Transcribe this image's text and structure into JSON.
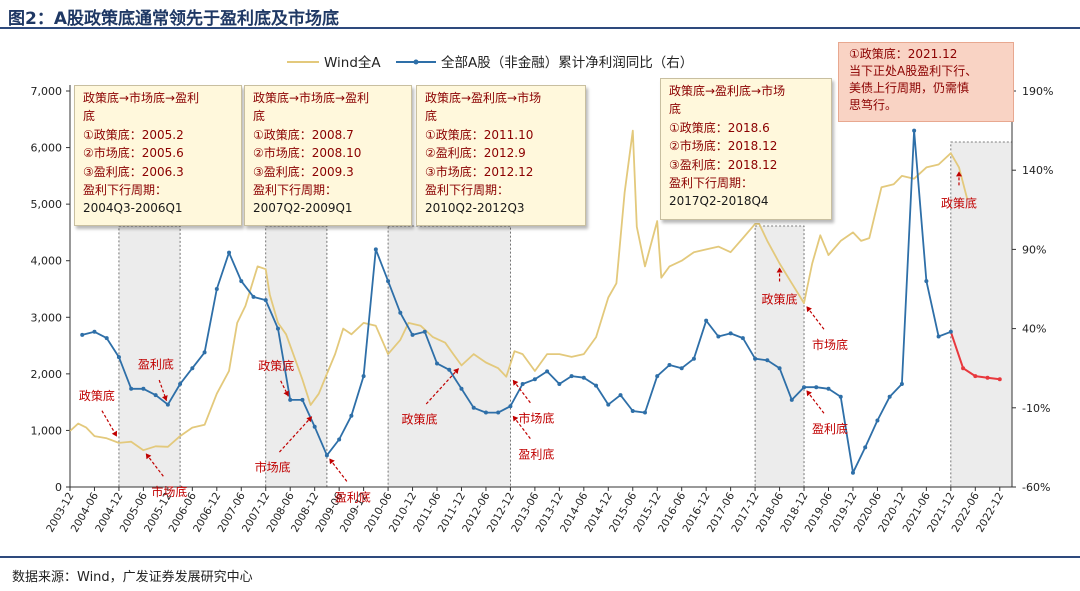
{
  "title": "图2：A股政策底通常领先于盈利底及市场底",
  "source": "数据来源：Wind，广发证券发展研究中心",
  "chart_data": {
    "type": "line",
    "legend": {
      "placement": "top",
      "items": [
        "Wind全A",
        "全部A股（非金融）累计净利润同比（右）"
      ]
    },
    "x_labels": [
      "2003-12",
      "2004-06",
      "2004-12",
      "2005-06",
      "2005-12",
      "2006-06",
      "2006-12",
      "2007-06",
      "2007-12",
      "2008-06",
      "2008-12",
      "2009-06",
      "2009-12",
      "2010-06",
      "2010-12",
      "2011-06",
      "2011-12",
      "2012-06",
      "2012-12",
      "2013-06",
      "2013-12",
      "2014-06",
      "2014-12",
      "2015-06",
      "2015-12",
      "2016-06",
      "2016-12",
      "2017-06",
      "2017-12",
      "2018-06",
      "2018-12",
      "2019-06",
      "2019-12",
      "2020-06",
      "2020-12",
      "2021-06",
      "2021-12",
      "2022-06",
      "2022-12"
    ],
    "y_left": {
      "min": 0,
      "max": 7000,
      "ticks": [
        "0",
        "1,000",
        "2,000",
        "3,000",
        "4,000",
        "5,000",
        "6,000",
        "7,000"
      ]
    },
    "y_right": {
      "min": -60,
      "max": 190,
      "ticks": [
        "-60%",
        "-10%",
        "40%",
        "90%",
        "140%",
        "190%"
      ]
    },
    "series": [
      {
        "name": "Wind全A",
        "axis": "left",
        "color": "#e3c97c",
        "points": [
          [
            "2003-12",
            990
          ],
          [
            "2004-02",
            1120
          ],
          [
            "2004-04",
            1050
          ],
          [
            "2004-06",
            900
          ],
          [
            "2004-09",
            860
          ],
          [
            "2004-12",
            780
          ],
          [
            "2005-03",
            800
          ],
          [
            "2005-06",
            650
          ],
          [
            "2005-09",
            720
          ],
          [
            "2005-12",
            710
          ],
          [
            "2006-03",
            900
          ],
          [
            "2006-06",
            1050
          ],
          [
            "2006-09",
            1100
          ],
          [
            "2006-12",
            1650
          ],
          [
            "2007-03",
            2050
          ],
          [
            "2007-05",
            2900
          ],
          [
            "2007-07",
            3200
          ],
          [
            "2007-10",
            3900
          ],
          [
            "2007-12",
            3850
          ],
          [
            "2008-01",
            3400
          ],
          [
            "2008-03",
            2900
          ],
          [
            "2008-05",
            2700
          ],
          [
            "2008-07",
            2300
          ],
          [
            "2008-09",
            1900
          ],
          [
            "2008-11",
            1450
          ],
          [
            "2009-01",
            1650
          ],
          [
            "2009-03",
            2000
          ],
          [
            "2009-05",
            2350
          ],
          [
            "2009-07",
            2800
          ],
          [
            "2009-09",
            2700
          ],
          [
            "2009-12",
            2900
          ],
          [
            "2010-03",
            2850
          ],
          [
            "2010-06",
            2350
          ],
          [
            "2010-09",
            2600
          ],
          [
            "2010-11",
            2900
          ],
          [
            "2011-02",
            2850
          ],
          [
            "2011-05",
            2650
          ],
          [
            "2011-08",
            2550
          ],
          [
            "2011-10",
            2350
          ],
          [
            "2011-12",
            2150
          ],
          [
            "2012-03",
            2350
          ],
          [
            "2012-06",
            2200
          ],
          [
            "2012-09",
            2100
          ],
          [
            "2012-11",
            1950
          ],
          [
            "2013-01",
            2400
          ],
          [
            "2013-03",
            2350
          ],
          [
            "2013-06",
            2050
          ],
          [
            "2013-09",
            2350
          ],
          [
            "2013-12",
            2350
          ],
          [
            "2014-03",
            2300
          ],
          [
            "2014-06",
            2350
          ],
          [
            "2014-09",
            2650
          ],
          [
            "2014-12",
            3350
          ],
          [
            "2015-02",
            3600
          ],
          [
            "2015-04",
            5200
          ],
          [
            "2015-06",
            6300
          ],
          [
            "2015-07",
            4600
          ],
          [
            "2015-09",
            3900
          ],
          [
            "2015-12",
            4700
          ],
          [
            "2016-01",
            3700
          ],
          [
            "2016-03",
            3900
          ],
          [
            "2016-06",
            4000
          ],
          [
            "2016-09",
            4150
          ],
          [
            "2016-12",
            4200
          ],
          [
            "2017-03",
            4250
          ],
          [
            "2017-06",
            4150
          ],
          [
            "2017-09",
            4400
          ],
          [
            "2017-12",
            4650
          ],
          [
            "2018-01",
            4650
          ],
          [
            "2018-03",
            4350
          ],
          [
            "2018-06",
            3950
          ],
          [
            "2018-09",
            3600
          ],
          [
            "2018-12",
            3250
          ],
          [
            "2019-02",
            3950
          ],
          [
            "2019-04",
            4450
          ],
          [
            "2019-06",
            4100
          ],
          [
            "2019-09",
            4350
          ],
          [
            "2019-12",
            4500
          ],
          [
            "2020-02",
            4350
          ],
          [
            "2020-04",
            4400
          ],
          [
            "2020-07",
            5300
          ],
          [
            "2020-10",
            5350
          ],
          [
            "2020-12",
            5500
          ],
          [
            "2021-03",
            5450
          ],
          [
            "2021-06",
            5650
          ],
          [
            "2021-09",
            5700
          ],
          [
            "2021-12",
            5900
          ],
          [
            "2022-02",
            5650
          ],
          [
            "2022-04",
            5100
          ]
        ]
      },
      {
        "name": "全部A股（非金融）累计净利润同比（右）",
        "axis": "right",
        "color": "#2e6fa8",
        "highlight_color": "#e8383d",
        "points": [
          [
            "2004-03",
            36
          ],
          [
            "2004-06",
            38
          ],
          [
            "2004-09",
            34
          ],
          [
            "2004-12",
            22
          ],
          [
            "2005-03",
            2
          ],
          [
            "2005-06",
            2
          ],
          [
            "2005-09",
            -2
          ],
          [
            "2005-12",
            -8
          ],
          [
            "2006-03",
            5
          ],
          [
            "2006-06",
            15
          ],
          [
            "2006-09",
            25
          ],
          [
            "2006-12",
            65
          ],
          [
            "2007-03",
            88
          ],
          [
            "2007-06",
            70
          ],
          [
            "2007-09",
            60
          ],
          [
            "2007-12",
            58
          ],
          [
            "2008-03",
            40
          ],
          [
            "2008-06",
            -5
          ],
          [
            "2008-09",
            -5
          ],
          [
            "2008-12",
            -22
          ],
          [
            "2009-03",
            -40
          ],
          [
            "2009-06",
            -30
          ],
          [
            "2009-09",
            -15
          ],
          [
            "2009-12",
            10
          ],
          [
            "2010-03",
            90
          ],
          [
            "2010-06",
            70
          ],
          [
            "2010-09",
            50
          ],
          [
            "2010-12",
            36
          ],
          [
            "2011-03",
            38
          ],
          [
            "2011-06",
            18
          ],
          [
            "2011-09",
            14
          ],
          [
            "2011-12",
            2
          ],
          [
            "2012-03",
            -10
          ],
          [
            "2012-06",
            -13
          ],
          [
            "2012-09",
            -13
          ],
          [
            "2012-12",
            -9
          ],
          [
            "2013-03",
            5
          ],
          [
            "2013-06",
            8
          ],
          [
            "2013-09",
            13
          ],
          [
            "2013-12",
            5
          ],
          [
            "2014-03",
            10
          ],
          [
            "2014-06",
            9
          ],
          [
            "2014-09",
            4
          ],
          [
            "2014-12",
            -8
          ],
          [
            "2015-03",
            -2
          ],
          [
            "2015-06",
            -12
          ],
          [
            "2015-09",
            -13
          ],
          [
            "2015-12",
            10
          ],
          [
            "2016-03",
            17
          ],
          [
            "2016-06",
            15
          ],
          [
            "2016-09",
            21
          ],
          [
            "2016-12",
            45
          ],
          [
            "2017-03",
            35
          ],
          [
            "2017-06",
            37
          ],
          [
            "2017-09",
            34
          ],
          [
            "2017-12",
            21
          ],
          [
            "2018-03",
            20
          ],
          [
            "2018-06",
            15
          ],
          [
            "2018-09",
            -5
          ],
          [
            "2018-12",
            3
          ],
          [
            "2019-03",
            3
          ],
          [
            "2019-06",
            2
          ],
          [
            "2019-09",
            -3
          ],
          [
            "2019-12",
            -51
          ],
          [
            "2020-03",
            -35
          ],
          [
            "2020-06",
            -18
          ],
          [
            "2020-09",
            -3
          ],
          [
            "2020-12",
            5
          ],
          [
            "2021-03",
            165
          ],
          [
            "2021-06",
            70
          ],
          [
            "2021-09",
            35
          ],
          [
            "2021-12",
            38
          ],
          [
            "2022-03",
            15
          ],
          [
            "2022-06",
            10
          ],
          [
            "2022-09",
            9
          ],
          [
            "2022-12",
            8
          ]
        ],
        "highlight_from": "2021-12"
      }
    ],
    "shaded_periods": [
      [
        "2004-12",
        "2006-03"
      ],
      [
        "2007-12",
        "2009-03"
      ],
      [
        "2010-06",
        "2012-12"
      ],
      [
        "2017-12",
        "2018-12"
      ],
      [
        "2021-12",
        "2023-03"
      ]
    ],
    "annotations": [
      {
        "text": "政策底",
        "at": [
          "2004-12",
          830
        ],
        "arrow": "down-right"
      },
      {
        "text": "市场底",
        "at": [
          "2005-06",
          650
        ],
        "arrow": "up-left"
      },
      {
        "text": "盈利底",
        "at": [
          "2005-12",
          -8
        ],
        "arrow": "down-left"
      },
      {
        "text": "政策底",
        "at": [
          "2008-06",
          -5
        ],
        "arrow": "down"
      },
      {
        "text": "市场底",
        "at": [
          "2008-12",
          1300
        ],
        "arrow": "up-right"
      },
      {
        "text": "盈利底",
        "at": [
          "2009-03",
          -40
        ],
        "arrow": "up-left"
      },
      {
        "text": "政策底",
        "at": [
          "2011-12",
          2150
        ],
        "arrow": "up-right"
      },
      {
        "text": "市场底",
        "at": [
          "2012-12",
          1950
        ],
        "arrow": "up-left"
      },
      {
        "text": "盈利底",
        "at": [
          "2012-12",
          -13
        ],
        "arrow": "up-left"
      },
      {
        "text": "政策底",
        "at": [
          "2018-06",
          3950
        ],
        "arrow": "up"
      },
      {
        "text": "市场底",
        "at": [
          "2018-12",
          3250
        ],
        "arrow": "up-left"
      },
      {
        "text": "盈利底",
        "at": [
          "2018-12",
          3
        ],
        "arrow": "up-left"
      },
      {
        "text": "政策底",
        "at": [
          "2022-02",
          5650
        ],
        "arrow": "up"
      }
    ],
    "boxes": [
      {
        "lines": [
          "政策底→市场底→盈利",
          "底",
          "①政策底：2005.2",
          "②市场底：2005.6",
          "③盈利底：2006.3"
        ],
        "cycle_label": "盈利下行周期：",
        "cycle": "2004Q3-2006Q1"
      },
      {
        "lines": [
          "政策底→市场底→盈利",
          "底",
          "①政策底：2008.7",
          "②市场底：2008.10",
          "③盈利底：2009.3"
        ],
        "cycle_label": "盈利下行周期：",
        "cycle": "2007Q2-2009Q1"
      },
      {
        "lines": [
          "政策底→盈利底→市场",
          "底",
          "①政策底：2011.10",
          "②盈利底：2012.9",
          "③市场底：2012.12"
        ],
        "cycle_label": "盈利下行周期：",
        "cycle": "2010Q2-2012Q3"
      },
      {
        "lines": [
          "政策底→盈利底→市场",
          "底",
          "①政策底：2018.6",
          "②市场底：2018.12",
          "③盈利底：2018.12"
        ],
        "cycle_label": "盈利下行周期：",
        "cycle": "2017Q2-2018Q4"
      }
    ],
    "note_box": {
      "lines": [
        "①政策底：2021.12",
        "当下正处A股盈利下行、",
        "美债上行周期，仍需慎",
        "思笃行。"
      ]
    }
  }
}
